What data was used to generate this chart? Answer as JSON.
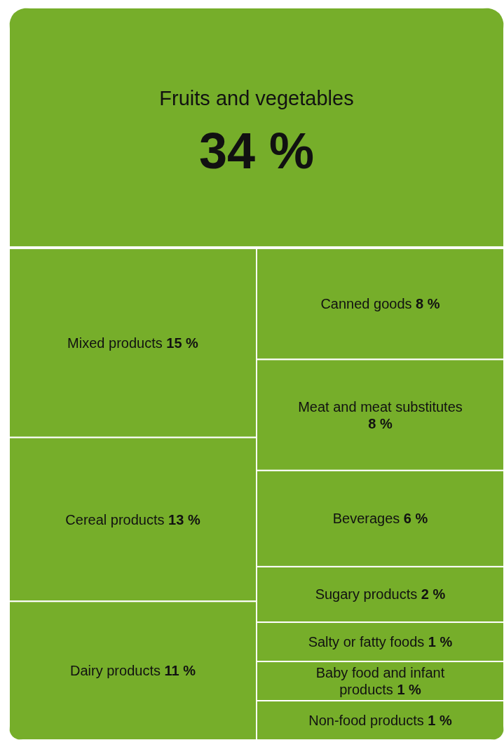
{
  "chart_data": {
    "type": "other",
    "categories": [
      "Fruits and vegetables",
      "Mixed products",
      "Cereal products",
      "Dairy products",
      "Canned goods",
      "Meat and meat substitutes",
      "Beverages",
      "Sugary products",
      "Salty or fatty foods",
      "Baby food and infant products",
      "Non-food products"
    ],
    "values": [
      34,
      15,
      13,
      11,
      8,
      8,
      6,
      2,
      1,
      1,
      1
    ],
    "value_labels": [
      "34 %",
      "15 %",
      "13 %",
      "11 %",
      "8 %",
      "8 %",
      "6 %",
      "2 %",
      "1 %",
      "1 %",
      "1 %"
    ],
    "color": "#76ae2a"
  }
}
